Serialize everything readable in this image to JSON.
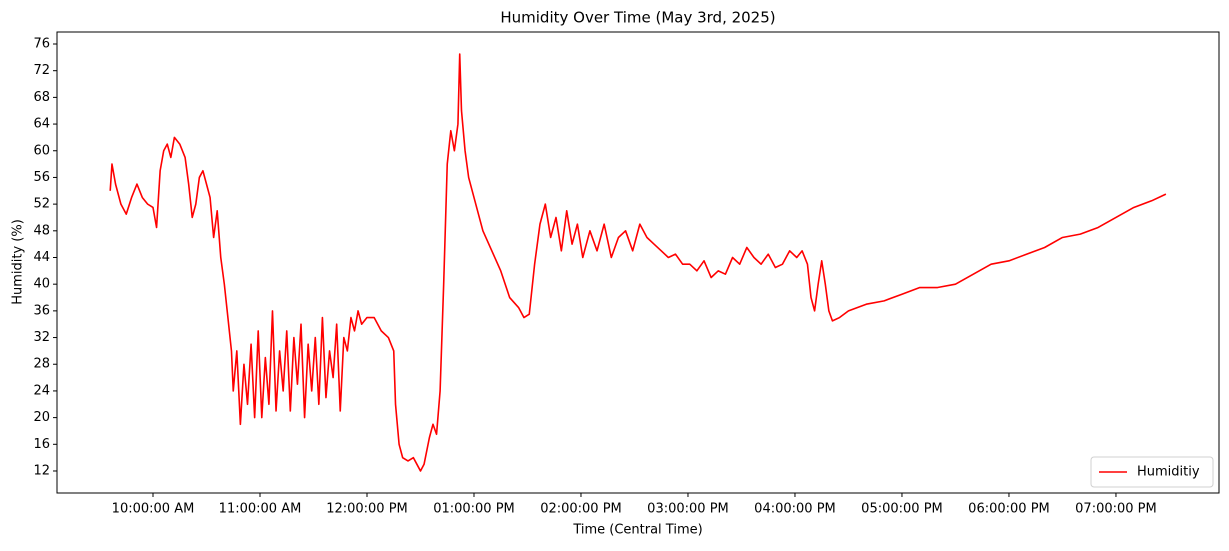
{
  "chart_data": {
    "type": "line",
    "title": "Humidity Over Time (May 3rd, 2025)",
    "x_label": "Time (Central Time)",
    "y_label": "Humidity (%)",
    "x": [
      "09:36:00 AM",
      "09:37:00 AM",
      "09:39:00 AM",
      "09:42:00 AM",
      "09:45:00 AM",
      "09:48:00 AM",
      "09:51:00 AM",
      "09:54:00 AM",
      "09:57:00 AM",
      "10:00:00 AM",
      "10:02:00 AM",
      "10:04:00 AM",
      "10:06:00 AM",
      "10:08:00 AM",
      "10:10:00 AM",
      "10:12:00 AM",
      "10:15:00 AM",
      "10:18:00 AM",
      "10:20:00 AM",
      "10:22:00 AM",
      "10:24:00 AM",
      "10:26:00 AM",
      "10:28:00 AM",
      "10:30:00 AM",
      "10:32:00 AM",
      "10:34:00 AM",
      "10:36:00 AM",
      "10:38:00 AM",
      "10:40:00 AM",
      "10:42:00 AM",
      "10:44:00 AM",
      "10:45:00 AM",
      "10:47:00 AM",
      "10:49:00 AM",
      "10:51:00 AM",
      "10:53:00 AM",
      "10:55:00 AM",
      "10:57:00 AM",
      "10:59:00 AM",
      "11:01:00 AM",
      "11:03:00 AM",
      "11:05:00 AM",
      "11:07:00 AM",
      "11:09:00 AM",
      "11:11:00 AM",
      "11:13:00 AM",
      "11:15:00 AM",
      "11:17:00 AM",
      "11:19:00 AM",
      "11:21:00 AM",
      "11:23:00 AM",
      "11:25:00 AM",
      "11:27:00 AM",
      "11:29:00 AM",
      "11:31:00 AM",
      "11:33:00 AM",
      "11:35:00 AM",
      "11:37:00 AM",
      "11:39:00 AM",
      "11:41:00 AM",
      "11:43:00 AM",
      "11:45:00 AM",
      "11:47:00 AM",
      "11:49:00 AM",
      "11:51:00 AM",
      "11:53:00 AM",
      "11:55:00 AM",
      "11:57:00 AM",
      "12:00:00 PM",
      "12:04:00 PM",
      "12:08:00 PM",
      "12:12:00 PM",
      "12:15:00 PM",
      "12:16:00 PM",
      "12:18:00 PM",
      "12:20:00 PM",
      "12:23:00 PM",
      "12:26:00 PM",
      "12:28:00 PM",
      "12:30:00 PM",
      "12:32:00 PM",
      "12:35:00 PM",
      "12:37:00 PM",
      "12:39:00 PM",
      "12:41:00 PM",
      "12:43:00 PM",
      "12:45:00 PM",
      "12:47:00 PM",
      "12:49:00 PM",
      "12:51:00 PM",
      "12:52:00 PM",
      "12:53:00 PM",
      "12:55:00 PM",
      "12:57:00 PM",
      "01:00:00 PM",
      "01:05:00 PM",
      "01:10:00 PM",
      "01:15:00 PM",
      "01:20:00 PM",
      "01:25:00 PM",
      "01:28:00 PM",
      "01:31:00 PM",
      "01:34:00 PM",
      "01:37:00 PM",
      "01:40:00 PM",
      "01:43:00 PM",
      "01:46:00 PM",
      "01:49:00 PM",
      "01:52:00 PM",
      "01:55:00 PM",
      "01:58:00 PM",
      "02:01:00 PM",
      "02:05:00 PM",
      "02:09:00 PM",
      "02:13:00 PM",
      "02:17:00 PM",
      "02:21:00 PM",
      "02:25:00 PM",
      "02:29:00 PM",
      "02:33:00 PM",
      "02:37:00 PM",
      "02:41:00 PM",
      "02:45:00 PM",
      "02:49:00 PM",
      "02:53:00 PM",
      "02:57:00 PM",
      "03:01:00 PM",
      "03:05:00 PM",
      "03:09:00 PM",
      "03:13:00 PM",
      "03:17:00 PM",
      "03:21:00 PM",
      "03:25:00 PM",
      "03:29:00 PM",
      "03:33:00 PM",
      "03:37:00 PM",
      "03:41:00 PM",
      "03:45:00 PM",
      "03:49:00 PM",
      "03:53:00 PM",
      "03:57:00 PM",
      "04:01:00 PM",
      "04:04:00 PM",
      "04:07:00 PM",
      "04:09:00 PM",
      "04:11:00 PM",
      "04:13:00 PM",
      "04:15:00 PM",
      "04:17:00 PM",
      "04:19:00 PM",
      "04:21:00 PM",
      "04:25:00 PM",
      "04:30:00 PM",
      "04:40:00 PM",
      "04:50:00 PM",
      "05:00:00 PM",
      "05:10:00 PM",
      "05:20:00 PM",
      "05:30:00 PM",
      "05:40:00 PM",
      "05:50:00 PM",
      "06:00:00 PM",
      "06:10:00 PM",
      "06:20:00 PM",
      "06:30:00 PM",
      "06:40:00 PM",
      "06:50:00 PM",
      "07:00:00 PM",
      "07:10:00 PM",
      "07:20:00 PM",
      "07:28:00 PM"
    ],
    "series": [
      {
        "name": "Humiditiy",
        "color": "#ff0000",
        "values": [
          54,
          58,
          55,
          52,
          50.5,
          53,
          55,
          53,
          52,
          51.5,
          48.5,
          57,
          60,
          61,
          59,
          62,
          61,
          59,
          55,
          50,
          52,
          56,
          57,
          55,
          53,
          47,
          51,
          44,
          40,
          35,
          30,
          24,
          30,
          19,
          28,
          22,
          31,
          20,
          33,
          20,
          29,
          22,
          36,
          21,
          30,
          24,
          33,
          21,
          32,
          25,
          34,
          20,
          31,
          24,
          32,
          22,
          35,
          23,
          30,
          26,
          34,
          21,
          32,
          30,
          35,
          33,
          36,
          34,
          35,
          35,
          33,
          32,
          30,
          22,
          16,
          14,
          13.5,
          14,
          13,
          12,
          13,
          17,
          19,
          17.5,
          24,
          40,
          58,
          63,
          60,
          64,
          74.5,
          66,
          60,
          56,
          53,
          48,
          45,
          42,
          38,
          36.5,
          35,
          35.5,
          43,
          49,
          52,
          47,
          50,
          45,
          51,
          46,
          49,
          44,
          48,
          45,
          49,
          44,
          47,
          48,
          45,
          49,
          47,
          46,
          45,
          44,
          44.5,
          43,
          43,
          42,
          43.5,
          41,
          42,
          41.5,
          44,
          43,
          45.5,
          44,
          43,
          44.5,
          42.5,
          43,
          45,
          44,
          45,
          43,
          38,
          36,
          40,
          43.5,
          40,
          36,
          34.5,
          35,
          36,
          37,
          37.5,
          38.5,
          39.5,
          39.5,
          40,
          41.5,
          43,
          43.5,
          44.5,
          45.5,
          47,
          47.5,
          48.5,
          50,
          51.5,
          52.5,
          53.5
        ]
      }
    ],
    "xlim": [
      "09:06:10 AM",
      "07:57:47 PM"
    ],
    "xticks": [
      "10:00:00 AM",
      "11:00:00 AM",
      "12:00:00 PM",
      "01:00:00 PM",
      "02:00:00 PM",
      "03:00:00 PM",
      "04:00:00 PM",
      "05:00:00 PM",
      "06:00:00 PM",
      "07:00:00 PM"
    ],
    "ylim": [
      8.7,
      77.8
    ],
    "yticks": [
      12,
      16,
      20,
      24,
      28,
      32,
      36,
      40,
      44,
      48,
      52,
      56,
      60,
      64,
      68,
      72,
      76
    ],
    "grid": false,
    "legend": "lower right"
  }
}
